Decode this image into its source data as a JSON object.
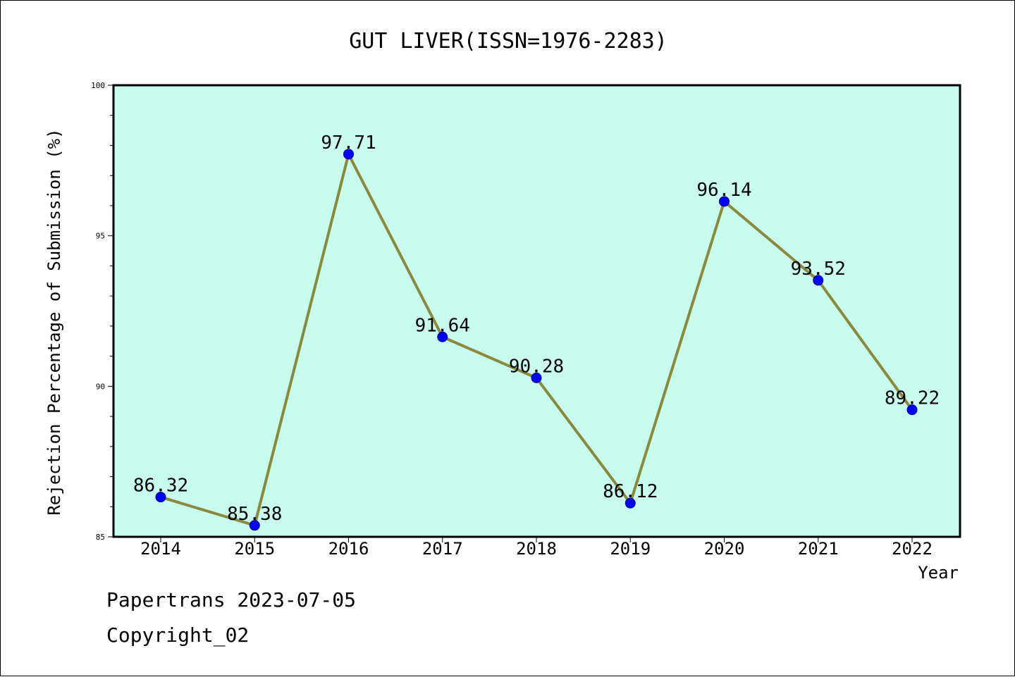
{
  "chart_data": {
    "type": "line",
    "title": "GUT LIVER(ISSN=1976-2283)",
    "xlabel": "Year",
    "ylabel": "Rejection Percentage of Submission (%)",
    "categories": [
      "2014",
      "2015",
      "2016",
      "2017",
      "2018",
      "2019",
      "2020",
      "2021",
      "2022"
    ],
    "series": [
      {
        "values": [
          86.32,
          85.38,
          97.71,
          91.64,
          90.28,
          86.12,
          96.14,
          93.52,
          89.22
        ],
        "data_labels": [
          "86.32",
          "85.38",
          "97.71",
          "91.64",
          "90.28",
          "86.12",
          "96.14",
          "93.52",
          "89.22"
        ],
        "line_color": "#8b8a3c",
        "marker_color": "#0000ff"
      }
    ],
    "ylim": [
      85,
      100
    ],
    "yticks": [
      "85",
      "90",
      "95",
      "100"
    ],
    "plot_background": "#c8fcee",
    "grid": false,
    "legend": "none"
  },
  "footer": {
    "line1": "Papertrans 2023-07-05",
    "line2": "Copyright_02"
  }
}
